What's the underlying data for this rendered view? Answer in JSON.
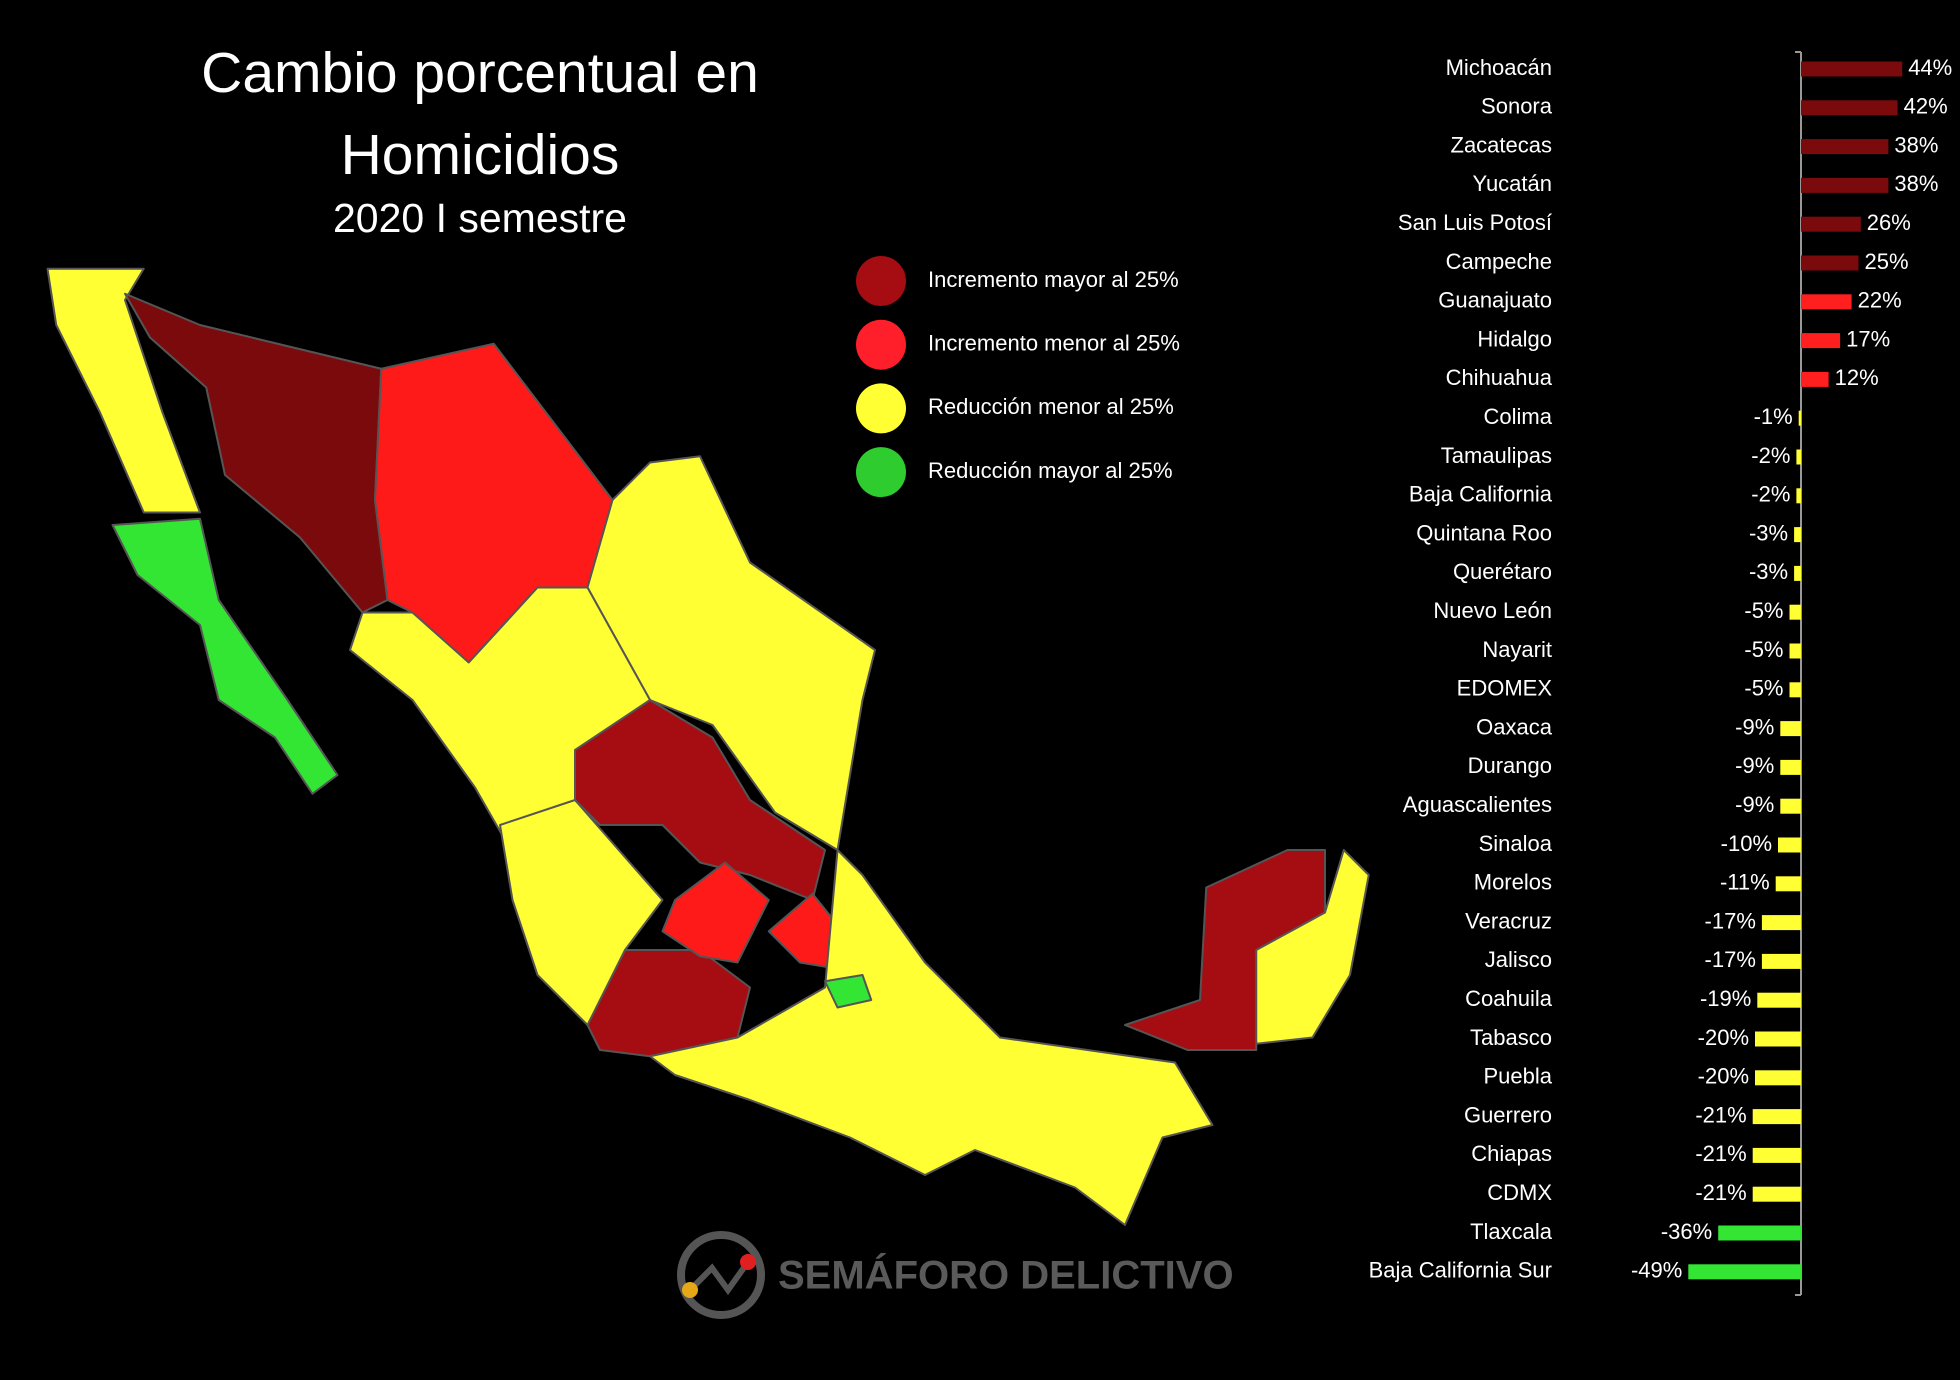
{
  "chart_data": {
    "type": "bar",
    "orientation": "horizontal",
    "title": "Cambio porcentual en Homicidios",
    "subtitle": "2020 I semestre",
    "categories": [
      "Michoacán",
      "Sonora",
      "Zacatecas",
      "Yucatán",
      "San Luis Potosí",
      "Campeche",
      "Guanajuato",
      "Hidalgo",
      "Chihuahua",
      "Colima",
      "Tamaulipas",
      "Baja California",
      "Quintana Roo",
      "Querétaro",
      "Nuevo León",
      "Nayarit",
      "EDOMEX",
      "Oaxaca",
      "Durango",
      "Aguascalientes",
      "Sinaloa",
      "Morelos",
      "Veracruz",
      "Jalisco",
      "Coahuila",
      "Tabasco",
      "Puebla",
      "Guerrero",
      "Chiapas",
      "CDMX",
      "Tlaxcala",
      "Baja California Sur"
    ],
    "values": [
      44,
      42,
      38,
      38,
      26,
      25,
      22,
      17,
      12,
      -1,
      -2,
      -2,
      -3,
      -3,
      -5,
      -5,
      -5,
      -9,
      -9,
      -9,
      -10,
      -11,
      -17,
      -17,
      -19,
      -20,
      -20,
      -21,
      -21,
      -21,
      -36,
      -49
    ],
    "value_labels": [
      "44%",
      "42%",
      "38%",
      "38%",
      "26%",
      "25%",
      "22%",
      "17%",
      "12%",
      "-1%",
      "-2%",
      "-2%",
      "-3%",
      "-3%",
      "-5%",
      "-5%",
      "-5%",
      "-9%",
      "-9%",
      "-9%",
      "-10%",
      "-11%",
      "-17%",
      "-17%",
      "-19%",
      "-20%",
      "-20%",
      "-21%",
      "-21%",
      "-21%",
      "-36%",
      "-49%"
    ],
    "colors": [
      "#7b0a0c",
      "#7b0a0c",
      "#7b0a0c",
      "#7b0a0c",
      "#7b0a0c",
      "#7b0a0c",
      "#ff1f1f",
      "#ff1f1f",
      "#ff1f1f",
      "#ffff33",
      "#ffff33",
      "#ffff33",
      "#ffff33",
      "#ffff33",
      "#ffff33",
      "#ffff33",
      "#ffff33",
      "#ffff33",
      "#ffff33",
      "#ffff33",
      "#ffff33",
      "#ffff33",
      "#ffff33",
      "#ffff33",
      "#ffff33",
      "#ffff33",
      "#ffff33",
      "#ffff33",
      "#ffff33",
      "#ffff33",
      "#33e633",
      "#33e633"
    ]
  },
  "legend": [
    {
      "label": "Incremento mayor al 25%",
      "color": "#a50d12"
    },
    {
      "label": "Incremento menor al 25%",
      "color": "#ff1f2a"
    },
    {
      "label": "Reducción menor al 25%",
      "color": "#ffff33"
    },
    {
      "label": "Reducción mayor al 25%",
      "color": "#2fcc2f"
    }
  ],
  "logo": "SEMÁFORO DELICTIVO"
}
